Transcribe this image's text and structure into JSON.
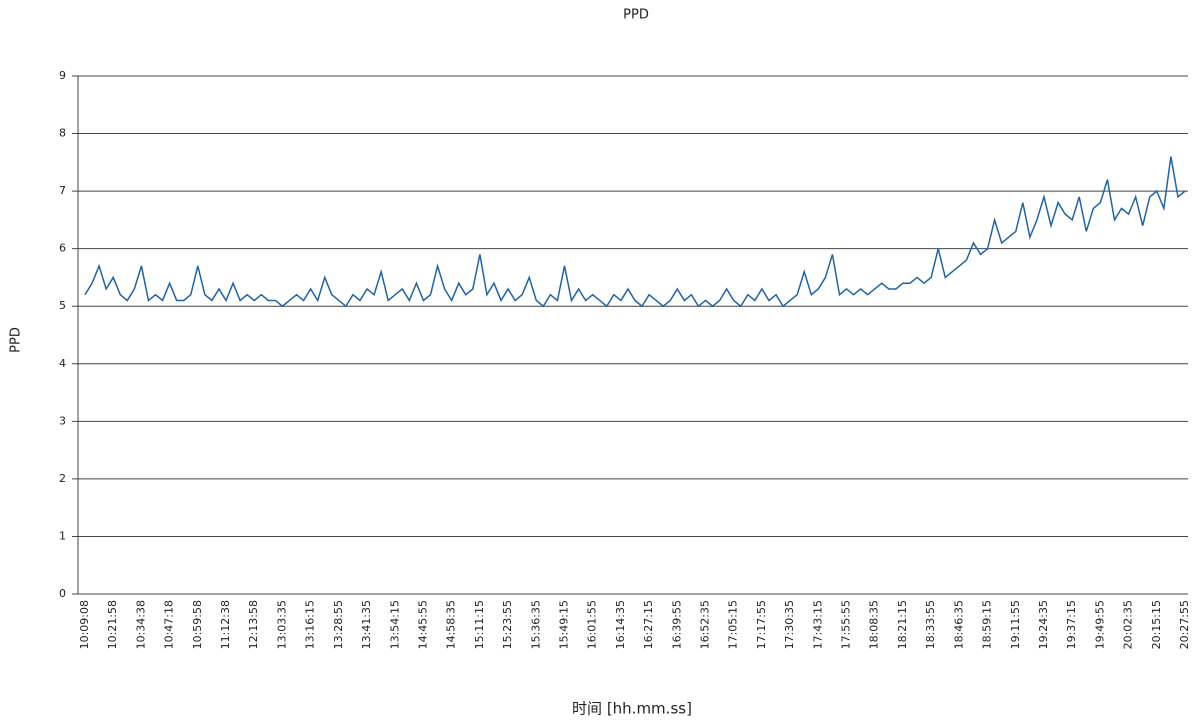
{
  "chart_data": {
    "type": "line",
    "title": "PPD",
    "ylabel": "PPD",
    "xlabel": "时间 [hh.mm.ss]",
    "categories": [
      "10:09:08",
      null,
      null,
      null,
      "10:21:58",
      null,
      null,
      null,
      "10:34:38",
      null,
      null,
      null,
      "10:47:18",
      null,
      null,
      null,
      "10:59:58",
      null,
      null,
      null,
      "11:12:38",
      null,
      null,
      null,
      "12:13:58",
      null,
      null,
      null,
      "13:03:35",
      null,
      null,
      null,
      "13:16:15",
      null,
      null,
      null,
      "13:28:55",
      null,
      null,
      null,
      "13:41:35",
      null,
      null,
      null,
      "13:54:15",
      null,
      null,
      null,
      "14:45:55",
      null,
      null,
      null,
      "14:58:35",
      null,
      null,
      null,
      "15:11:15",
      null,
      null,
      null,
      "15:23:55",
      null,
      null,
      null,
      "15:36:35",
      null,
      null,
      null,
      "15:49:15",
      null,
      null,
      null,
      "16:01:55",
      null,
      null,
      null,
      "16:14:35",
      null,
      null,
      null,
      "16:27:15",
      null,
      null,
      null,
      "16:39:55",
      null,
      null,
      null,
      "16:52:35",
      null,
      null,
      null,
      "17:05:15",
      null,
      null,
      null,
      "17:17:55",
      null,
      null,
      null,
      "17:30:35",
      null,
      null,
      null,
      "17:43:15",
      null,
      null,
      null,
      "17:55:55",
      null,
      null,
      null,
      "18:08:35",
      null,
      null,
      null,
      "18:21:15",
      null,
      null,
      null,
      "18:33:55",
      null,
      null,
      null,
      "18:46:35",
      null,
      null,
      null,
      "18:59:15",
      null,
      null,
      null,
      "19:11:55",
      null,
      null,
      null,
      "19:24:35",
      null,
      null,
      null,
      "19:37:15",
      null,
      null,
      null,
      "19:49:55",
      null,
      null,
      null,
      "20:02:35",
      null,
      null,
      null,
      "20:15:15",
      null,
      null,
      null,
      "20:27:55"
    ],
    "series": [
      {
        "name": "PPD",
        "color": "#1f63a8",
        "values": [
          5.2,
          5.4,
          5.7,
          5.3,
          5.5,
          5.2,
          5.1,
          5.3,
          5.7,
          5.1,
          5.2,
          5.1,
          5.4,
          5.1,
          5.1,
          5.2,
          5.7,
          5.2,
          5.1,
          5.3,
          5.1,
          5.4,
          5.1,
          5.2,
          5.1,
          5.2,
          5.1,
          5.1,
          5.0,
          5.1,
          5.2,
          5.1,
          5.3,
          5.1,
          5.5,
          5.2,
          5.1,
          5.0,
          5.2,
          5.1,
          5.3,
          5.2,
          5.6,
          5.1,
          5.2,
          5.3,
          5.1,
          5.4,
          5.1,
          5.2,
          5.7,
          5.3,
          5.1,
          5.4,
          5.2,
          5.3,
          5.9,
          5.2,
          5.4,
          5.1,
          5.3,
          5.1,
          5.2,
          5.5,
          5.1,
          5.0,
          5.2,
          5.1,
          5.7,
          5.1,
          5.3,
          5.1,
          5.2,
          5.1,
          5.0,
          5.2,
          5.1,
          5.3,
          5.1,
          5.0,
          5.2,
          5.1,
          5.0,
          5.1,
          5.3,
          5.1,
          5.2,
          5.0,
          5.1,
          5.0,
          5.1,
          5.3,
          5.1,
          5.0,
          5.2,
          5.1,
          5.3,
          5.1,
          5.2,
          5.0,
          5.1,
          5.2,
          5.6,
          5.2,
          5.3,
          5.5,
          5.9,
          5.2,
          5.3,
          5.2,
          5.3,
          5.2,
          5.3,
          5.4,
          5.3,
          5.3,
          5.4,
          5.4,
          5.5,
          5.4,
          5.5,
          6.0,
          5.5,
          5.6,
          5.7,
          5.8,
          6.1,
          5.9,
          6.0,
          6.5,
          6.1,
          6.2,
          6.3,
          6.8,
          6.2,
          6.5,
          6.9,
          6.4,
          6.8,
          6.6,
          6.5,
          6.9,
          6.3,
          6.7,
          6.8,
          7.2,
          6.5,
          6.7,
          6.6,
          6.9,
          6.4,
          6.9,
          7.0,
          6.7,
          7.6,
          6.9,
          7.0
        ]
      }
    ],
    "ylim": [
      0,
      9
    ],
    "yticks": [
      0,
      1,
      2,
      3,
      4,
      5,
      6,
      7,
      8,
      9
    ],
    "grid": true
  }
}
